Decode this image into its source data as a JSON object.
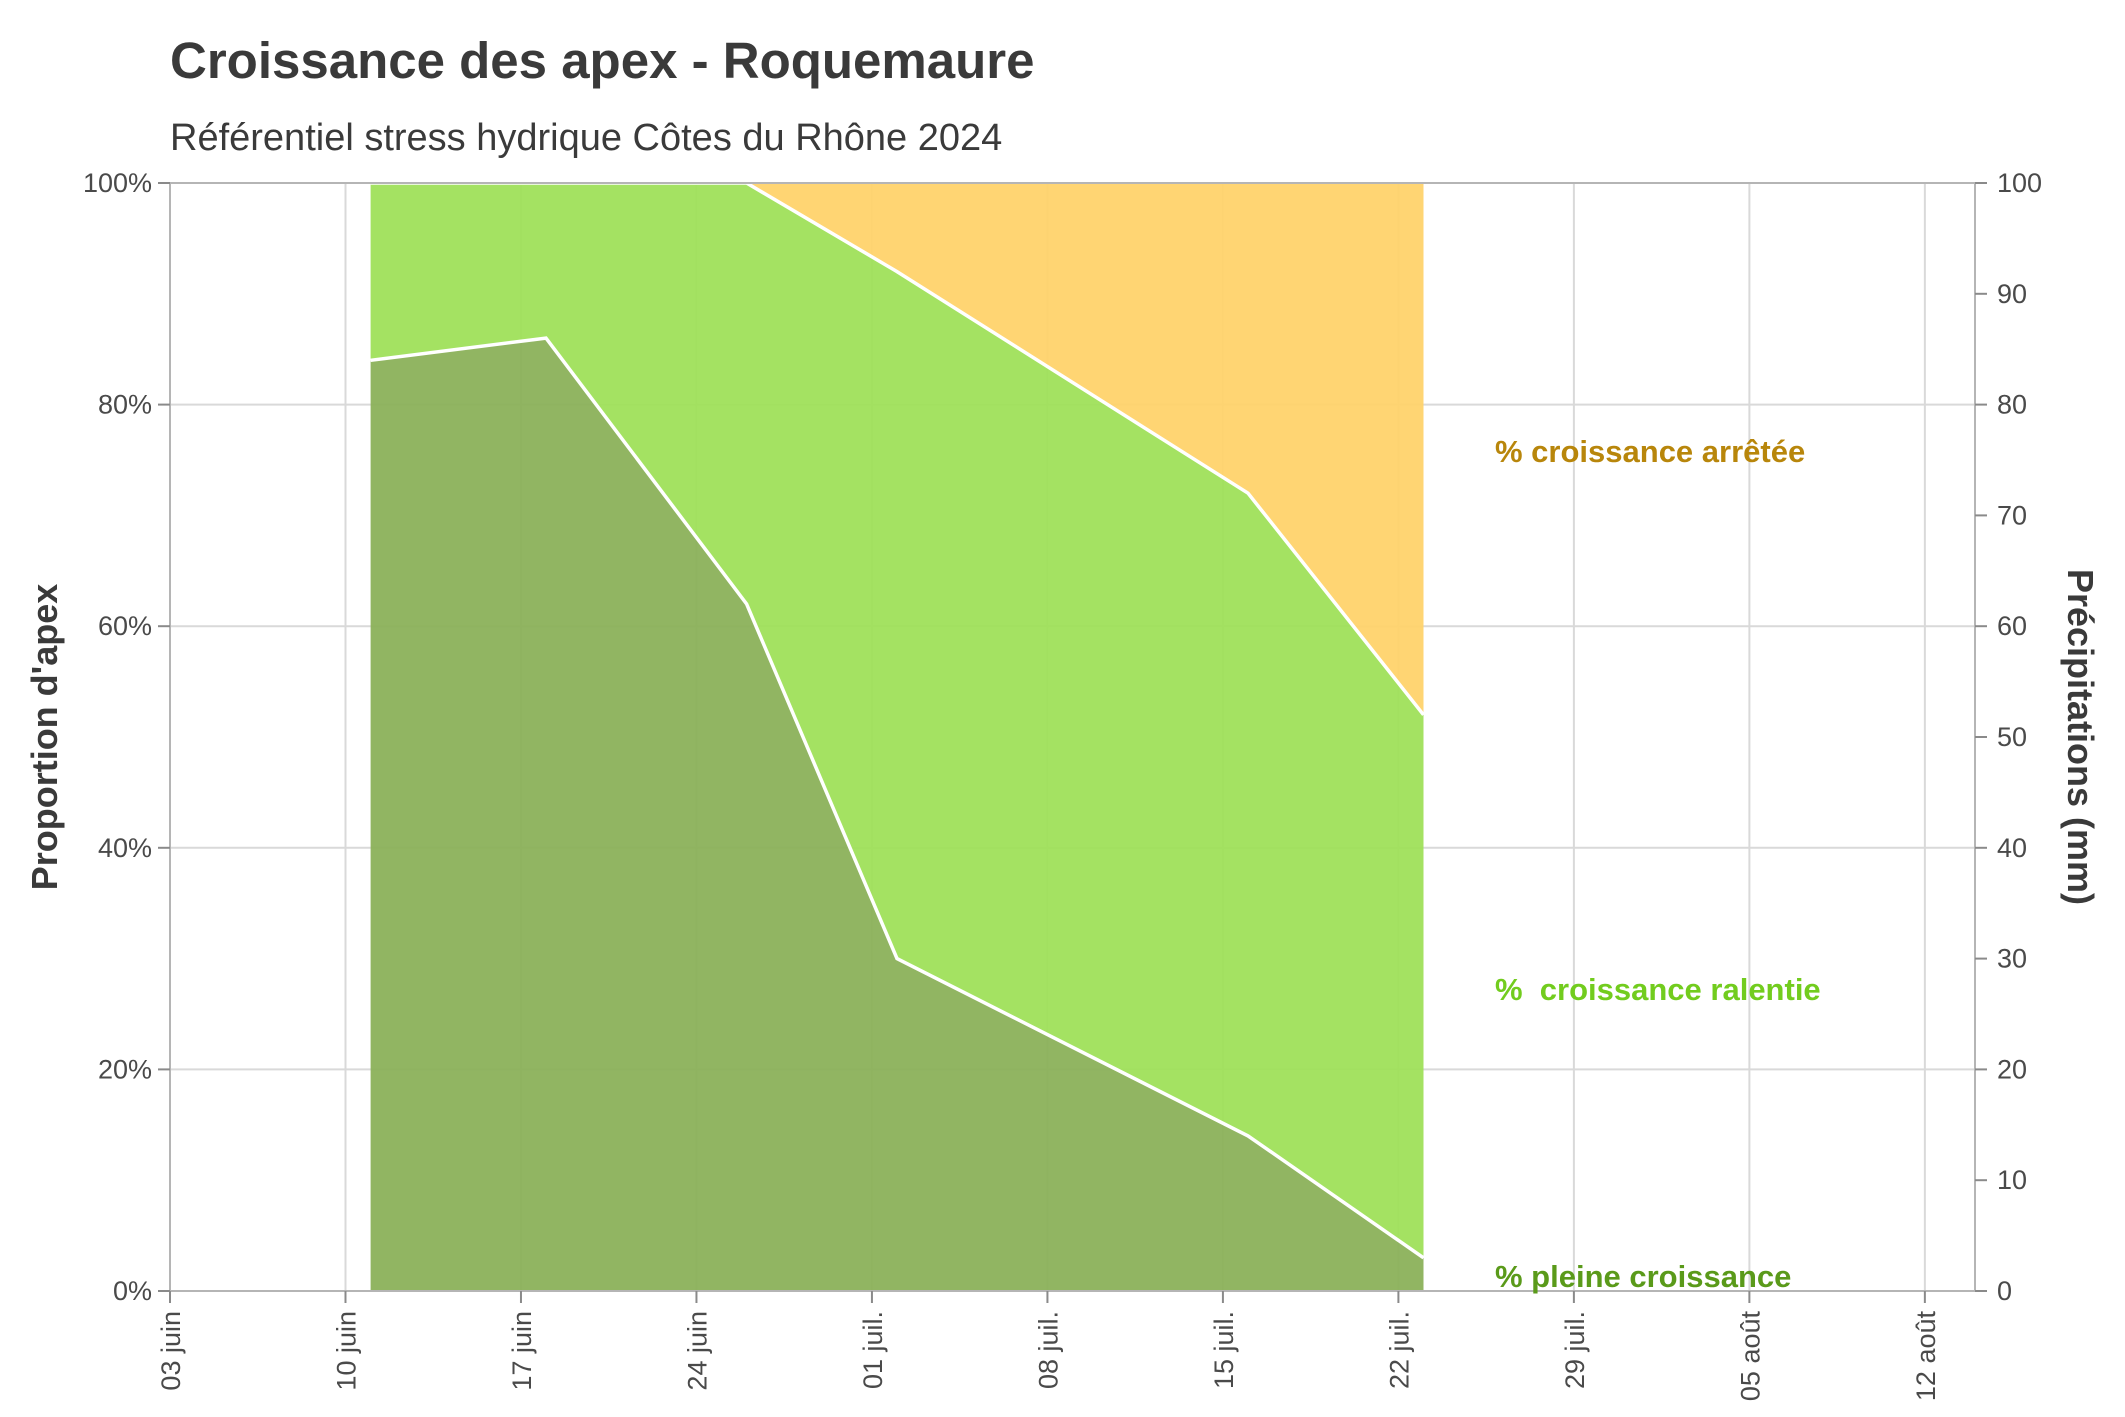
{
  "chart_data": {
    "type": "area",
    "title": "Croissance des apex - Roquemaure",
    "subtitle": "Référentiel stress hydrique Côtes du Rhône 2024",
    "ylabel": "Proportion d'apex",
    "y2label": "Précipitations (mm)",
    "xlabel": "",
    "xlim": [
      "2024-06-03",
      "2024-08-14"
    ],
    "ylim": [
      0,
      100
    ],
    "y2lim": [
      0,
      100
    ],
    "y_ticks": [
      "0%",
      "20%",
      "40%",
      "60%",
      "80%",
      "100%"
    ],
    "y2_ticks": [
      "0",
      "10",
      "20",
      "30",
      "40",
      "50",
      "60",
      "70",
      "80",
      "90",
      "100"
    ],
    "x_ticks": [
      "03 juin",
      "10 juin",
      "17 juin",
      "24 juin",
      "01 juil.",
      "08 juil.",
      "15 juil.",
      "22 juil.",
      "29 juil.",
      "05 août",
      "12 août"
    ],
    "x": [
      "2024-06-11",
      "2024-06-18",
      "2024-06-26",
      "2024-07-02",
      "2024-07-16",
      "2024-07-23"
    ],
    "series": [
      {
        "name": "% pleine croissance",
        "values": [
          84,
          86,
          62,
          30,
          14,
          3
        ],
        "color": "#8bb15a"
      },
      {
        "name": "%  croissance ralentie",
        "values": [
          16,
          14,
          38,
          62,
          58,
          49
        ],
        "color": "#9fe05a"
      },
      {
        "name": "% croissance arrêtée",
        "values": [
          0,
          0,
          0,
          8,
          28,
          48
        ],
        "color": "#ffd36b"
      }
    ],
    "annotation_colors": [
      "#5a9a1a",
      "#72cc1e",
      "#b8860b"
    ],
    "grid": true
  }
}
